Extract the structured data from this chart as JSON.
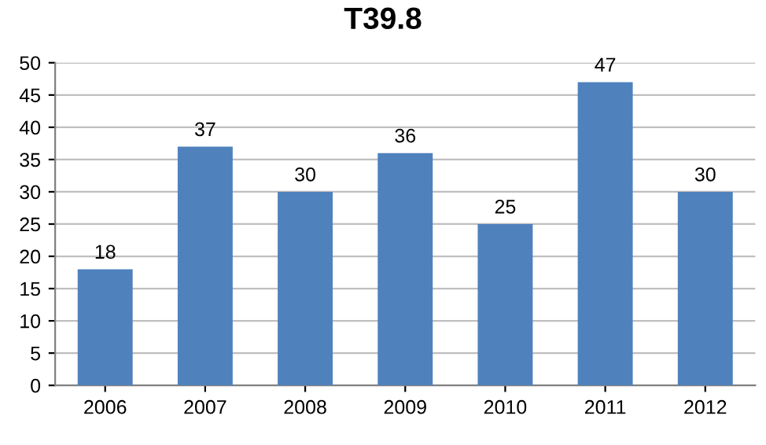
{
  "chart_data": {
    "type": "bar",
    "title": "T39.8",
    "categories": [
      "2006",
      "2007",
      "2008",
      "2009",
      "2010",
      "2011",
      "2012"
    ],
    "values": [
      18,
      37,
      30,
      36,
      25,
      47,
      30
    ],
    "color": "#4f81bd",
    "ylim": [
      0,
      50
    ],
    "yticks": [
      0,
      5,
      10,
      15,
      20,
      25,
      30,
      35,
      40,
      45,
      50
    ],
    "grid": "y",
    "data_labels": true
  }
}
